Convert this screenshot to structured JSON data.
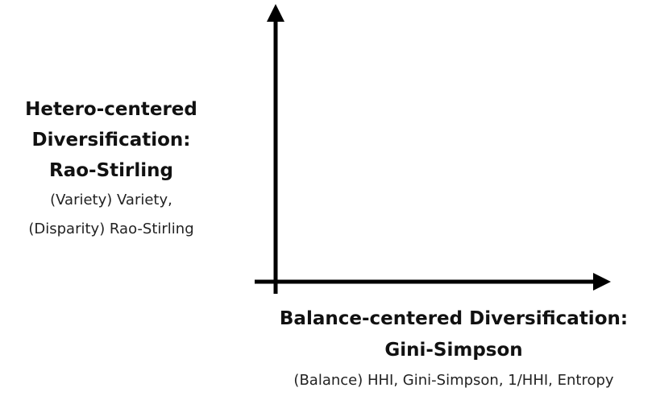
{
  "y_label": {
    "title_lines": [
      "Hetero-centered",
      "Diversification:",
      "Rao-Stirling"
    ],
    "detail_lines": [
      "(Variety) Variety,",
      "(Disparity) Rao-Stirling"
    ]
  },
  "x_label": {
    "title_lines": [
      "Balance-centered Diversification:",
      "Gini-Simpson"
    ],
    "detail_lines": [
      "(Balance) HHI, Gini-Simpson, 1/HHI, Entropy"
    ]
  }
}
